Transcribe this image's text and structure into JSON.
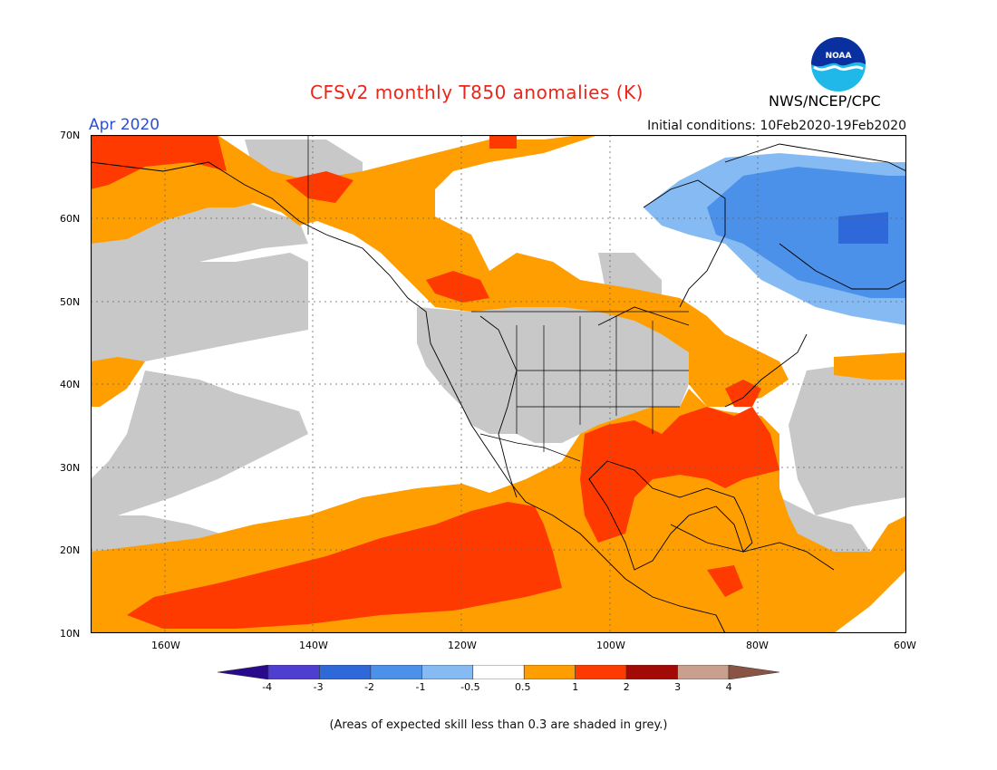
{
  "header": {
    "title": "CFSv2 monthly T850 anomalies (K)",
    "month": "Apr 2020",
    "initial_conditions": "Initial conditions: 10Feb2020-19Feb2020",
    "org": "NWS/NCEP/CPC",
    "logo_text": "NOAA"
  },
  "axes": {
    "y_ticks": [
      "70N",
      "60N",
      "50N",
      "40N",
      "30N",
      "20N",
      "10N"
    ],
    "x_ticks": [
      "160W",
      "140W",
      "120W",
      "100W",
      "80W",
      "60W"
    ]
  },
  "colorbar": {
    "labels": [
      "-4",
      "-3",
      "-2",
      "-1",
      "-0.5",
      "0.5",
      "1",
      "2",
      "3",
      "4"
    ],
    "colors": [
      "#2a0a8c",
      "#4f3fd1",
      "#2f69d9",
      "#4b91ea",
      "#86baf2",
      "#ffffff",
      "#ff9e00",
      "#ff3a00",
      "#a30a05",
      "#c9a08e",
      "#8a5444"
    ]
  },
  "palette": {
    "grey_low_skill": "#c8c8c8",
    "neutral": "#ffffff",
    "warm_0_5_1": "#ff9e00",
    "warm_1_2": "#ff3a00",
    "cool_0_5_1": "#86baf2",
    "cool_1_2": "#4b91ea",
    "cool_2_3": "#2f69d9"
  },
  "footnote": "(Areas of expected skill less than 0.3 are shaded in grey.)"
}
